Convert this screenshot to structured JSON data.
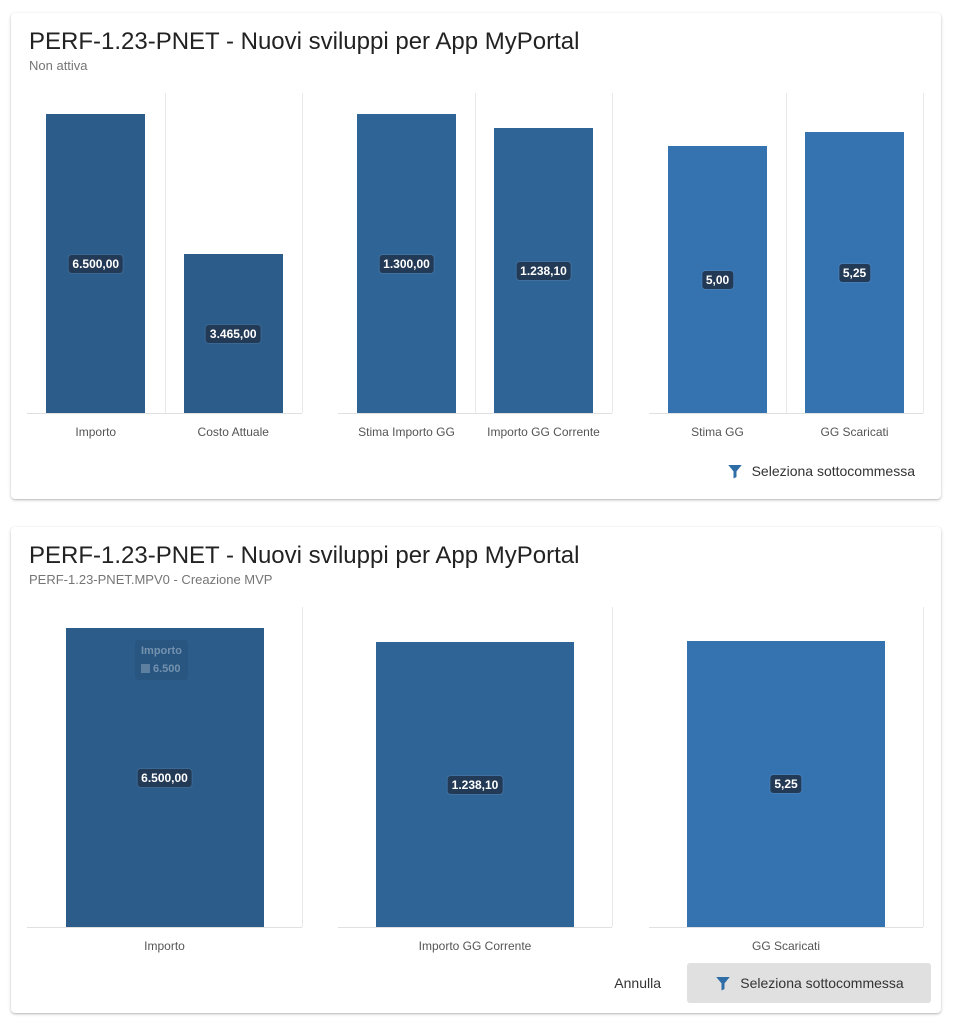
{
  "cards": [
    {
      "title": "PERF-1.23-PNET - Nuovi sviluppi per App MyPortal",
      "subtitle": "Non attiva",
      "groups": [
        {
          "color": "#2b5c8a",
          "ymax": 6500,
          "bars": [
            {
              "category": "Importo",
              "value": 6500,
              "label": "6.500,00"
            },
            {
              "category": "Costo Attuale",
              "value": 3465,
              "label": "3.465,00"
            }
          ]
        },
        {
          "color": "#2f6497",
          "ymax": 1300,
          "bars": [
            {
              "category": "Stima Importo GG",
              "value": 1300,
              "label": "1.300,00"
            },
            {
              "category": "Importo GG Corrente",
              "value": 1238.1,
              "label": "1.238,10"
            }
          ]
        },
        {
          "color": "#3572b0",
          "ymax": 5.6,
          "bars": [
            {
              "category": "Stima GG",
              "value": 5.0,
              "label": "5,00"
            },
            {
              "category": "GG Scaricati",
              "value": 5.25,
              "label": "5,25"
            }
          ]
        }
      ],
      "actions": {
        "select_label": "Seleziona sottocommessa"
      }
    },
    {
      "title": "PERF-1.23-PNET - Nuovi sviluppi per App MyPortal",
      "subtitle": "PERF-1.23-PNET.MPV0 - Creazione MVP",
      "groups": [
        {
          "color": "#2b5c8a",
          "ymax": 6500,
          "bars": [
            {
              "category": "Importo",
              "value": 6500,
              "label": "6.500,00"
            }
          ]
        },
        {
          "color": "#2f6497",
          "ymax": 1300,
          "bars": [
            {
              "category": "Importo GG Corrente",
              "value": 1238.1,
              "label": "1.238,10"
            }
          ]
        },
        {
          "color": "#3572b0",
          "ymax": 5.5,
          "bars": [
            {
              "category": "GG Scaricati",
              "value": 5.25,
              "label": "5,25"
            }
          ]
        }
      ],
      "tooltip": {
        "title": "Importo",
        "value": "6.500"
      },
      "actions": {
        "cancel_label": "Annulla",
        "select_label": "Seleziona sottocommessa"
      }
    }
  ],
  "chart_data": [
    {
      "type": "bar",
      "categories": [
        "Importo",
        "Costo Attuale",
        "Stima Importo GG",
        "Importo GG Corrente",
        "Stima GG",
        "GG Scaricati"
      ],
      "values": [
        6500,
        3465,
        1300,
        1238.1,
        5.0,
        5.25
      ],
      "title": "PERF-1.23-PNET - Nuovi sviluppi per App MyPortal",
      "subtitle": "Non attiva",
      "grid": true
    },
    {
      "type": "bar",
      "categories": [
        "Importo",
        "Importo GG Corrente",
        "GG Scaricati"
      ],
      "values": [
        6500,
        1238.1,
        5.25
      ],
      "title": "PERF-1.23-PNET - Nuovi sviluppi per App MyPortal",
      "subtitle": "PERF-1.23-PNET.MPV0 - Creazione MVP",
      "grid": true
    }
  ]
}
